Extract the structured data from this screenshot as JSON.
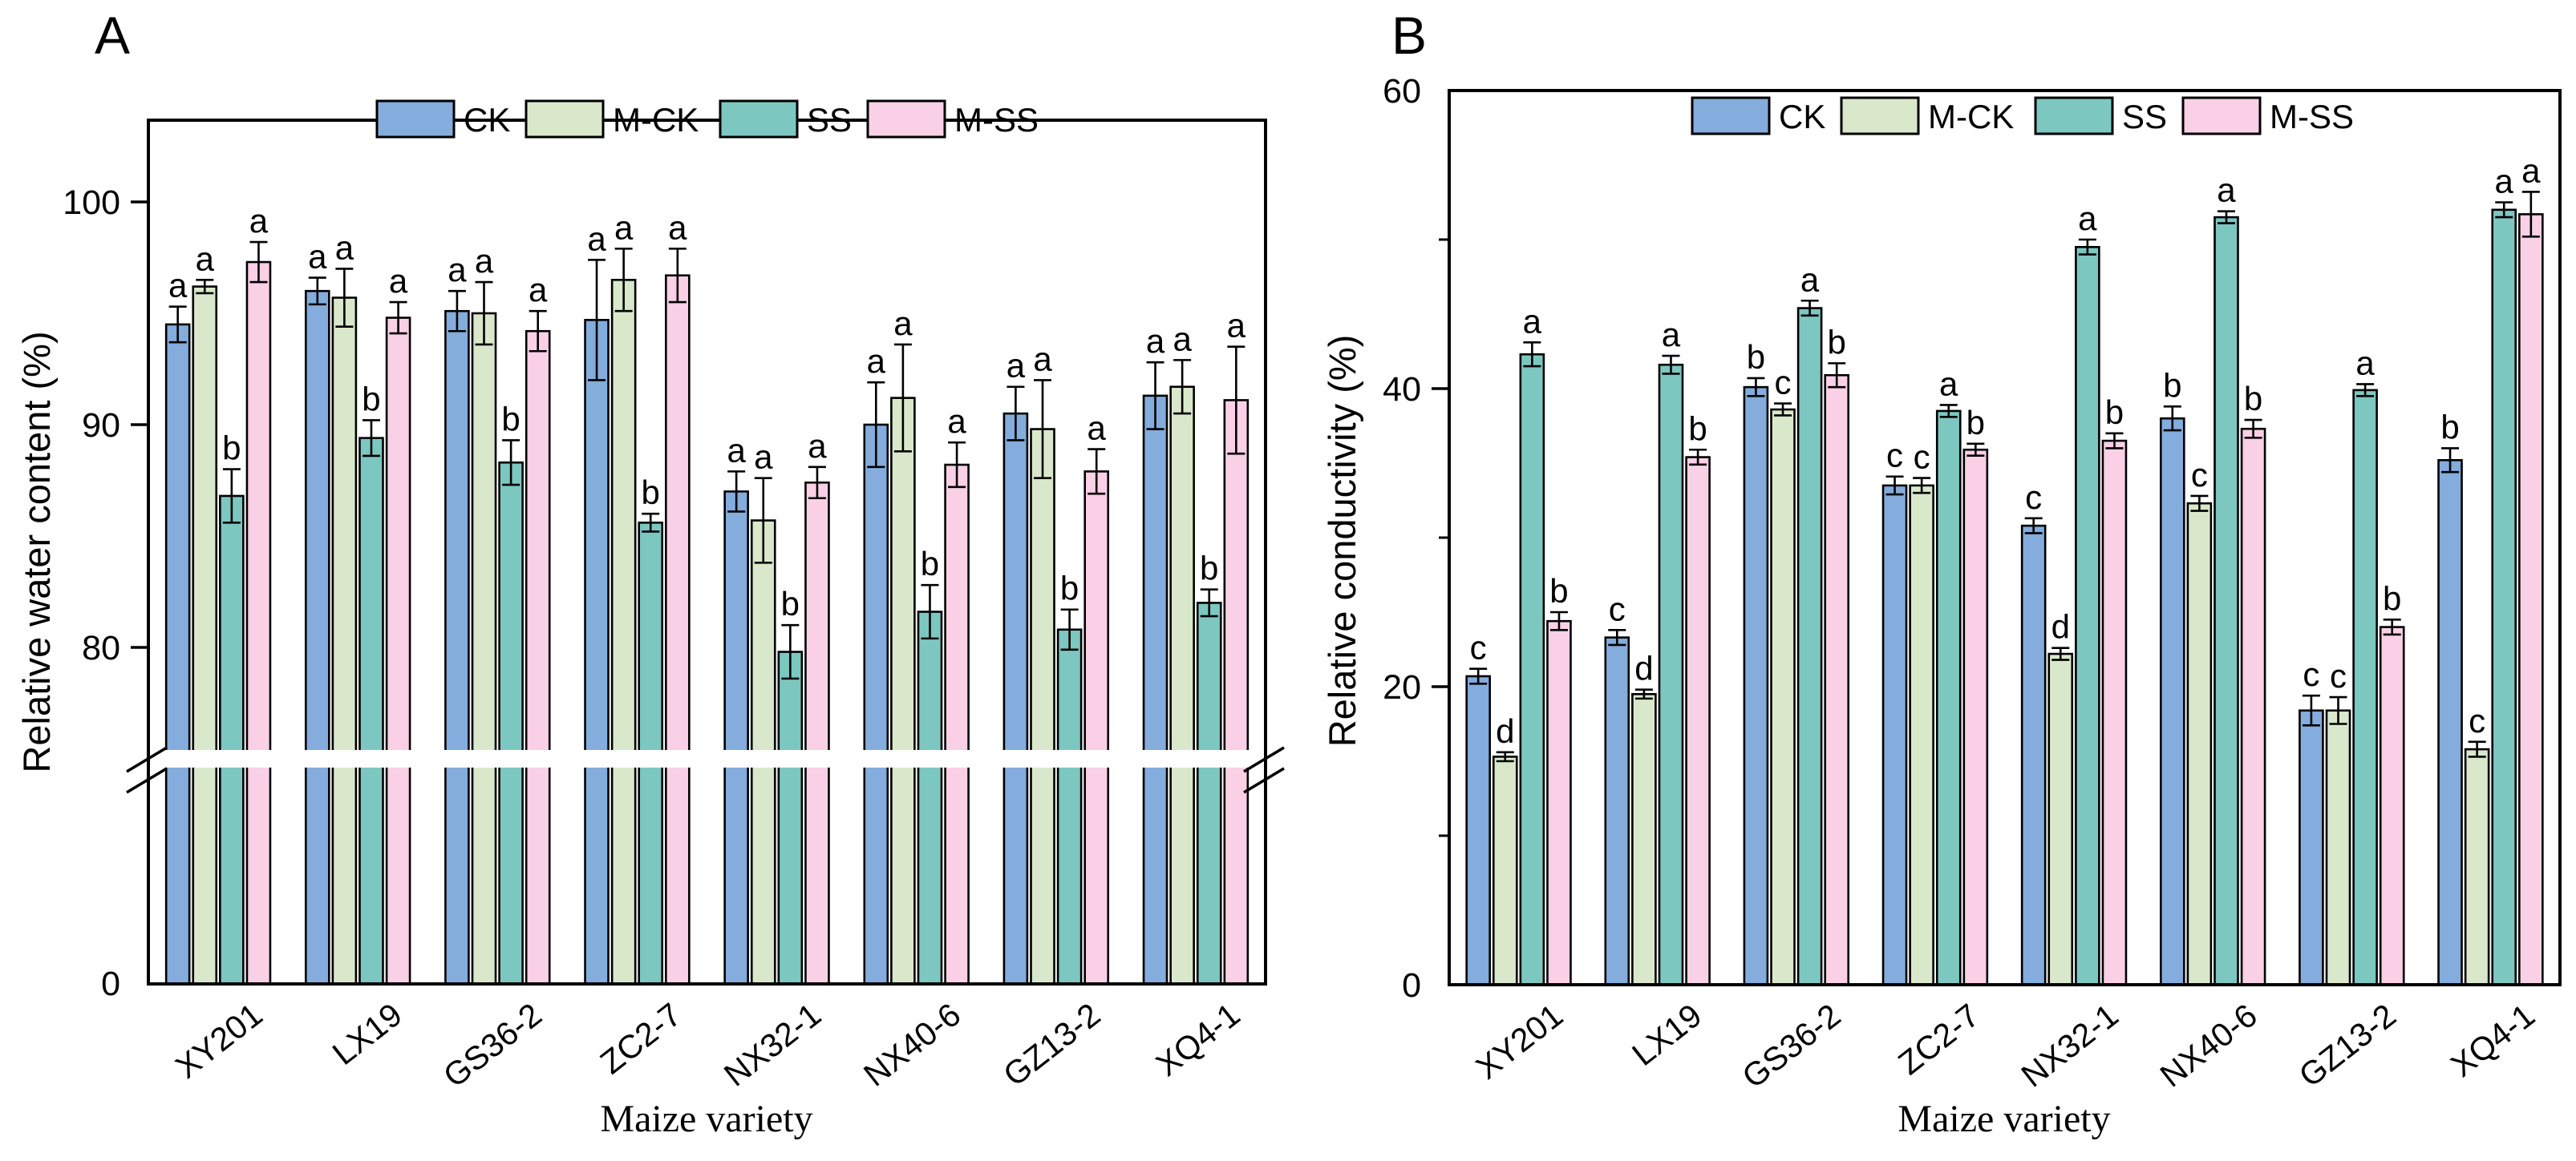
{
  "panel_a": {
    "label": "A",
    "ylabel": "Relative water content (%)",
    "xlabel": "Maize variety"
  },
  "panel_b": {
    "label": "B",
    "ylabel": "Relative conductivity (%)",
    "xlabel": "Maize variety"
  },
  "legend": {
    "items": [
      "CK",
      "M-CK",
      "SS",
      "M-SS"
    ]
  },
  "colors": {
    "CK": "#84ACDC",
    "M-CK": "#D9E8CA",
    "SS": "#7DC7C1",
    "M-SS": "#F9D0E6",
    "outline": "#000000",
    "background": "#ffffff"
  },
  "chart_data": [
    {
      "type": "bar",
      "panel": "A",
      "ylabel": "Relative water content (%)",
      "xlabel": "Maize variety",
      "legend_position": "top-inside",
      "grid": false,
      "y_axis": {
        "labeled_ticks": [
          100,
          90,
          80,
          0
        ],
        "broken_axis_gap": [
          0,
          75
        ],
        "unit": "%"
      },
      "categories": [
        "XY201",
        "LX19",
        "GS36-2",
        "ZC2-7",
        "NX32-1",
        "NX40-6",
        "GZ13-2",
        "XQ4-1"
      ],
      "series": [
        {
          "name": "CK",
          "color": "#84ACDC",
          "values": [
            94.5,
            96.0,
            95.1,
            94.7,
            87.0,
            90.0,
            90.5,
            91.3
          ],
          "errors": [
            0.8,
            0.6,
            0.9,
            2.7,
            0.9,
            1.9,
            1.2,
            1.5
          ],
          "letters": [
            "a",
            "a",
            "a",
            "a",
            "a",
            "a",
            "a",
            "a"
          ]
        },
        {
          "name": "M-CK",
          "color": "#D9E8CA",
          "values": [
            96.2,
            95.7,
            95.0,
            96.5,
            85.7,
            91.2,
            89.8,
            91.7
          ],
          "errors": [
            0.3,
            1.3,
            1.4,
            1.4,
            1.9,
            2.4,
            2.2,
            1.2
          ],
          "letters": [
            "a",
            "a",
            "a",
            "a",
            "a",
            "a",
            "a",
            "a"
          ]
        },
        {
          "name": "SS",
          "color": "#7DC7C1",
          "values": [
            86.8,
            89.4,
            88.3,
            85.6,
            79.8,
            81.6,
            80.8,
            82.0
          ],
          "errors": [
            1.2,
            0.8,
            1.0,
            0.4,
            1.2,
            1.2,
            0.9,
            0.6
          ],
          "letters": [
            "b",
            "b",
            "b",
            "b",
            "b",
            "b",
            "b",
            "b"
          ]
        },
        {
          "name": "M-SS",
          "color": "#F9D0E6",
          "values": [
            97.3,
            94.8,
            94.2,
            96.7,
            87.4,
            88.2,
            87.9,
            91.1
          ],
          "errors": [
            0.9,
            0.7,
            0.9,
            1.2,
            0.7,
            1.0,
            1.0,
            2.4
          ],
          "letters": [
            "a",
            "a",
            "a",
            "a",
            "a",
            "a",
            "a",
            "a"
          ]
        }
      ]
    },
    {
      "type": "bar",
      "panel": "B",
      "ylabel": "Relative conductivity (%)",
      "xlabel": "Maize variety",
      "legend_position": "top-inside",
      "grid": false,
      "ylim": [
        0,
        60
      ],
      "y_axis": {
        "labeled_ticks": [
          0,
          20,
          40,
          60
        ],
        "minor_ticks": [
          10,
          30,
          50
        ],
        "unit": "%"
      },
      "categories": [
        "XY201",
        "LX19",
        "GS36-2",
        "ZC2-7",
        "NX32-1",
        "NX40-6",
        "GZ13-2",
        "XQ4-1"
      ],
      "series": [
        {
          "name": "CK",
          "color": "#84ACDC",
          "values": [
            20.7,
            23.3,
            40.1,
            33.5,
            30.8,
            38.0,
            18.4,
            35.2
          ],
          "errors": [
            0.5,
            0.5,
            0.6,
            0.6,
            0.5,
            0.8,
            1.0,
            0.8
          ],
          "letters": [
            "c",
            "c",
            "b",
            "c",
            "c",
            "b",
            "c",
            "b"
          ]
        },
        {
          "name": "M-CK",
          "color": "#D9E8CA",
          "values": [
            15.3,
            19.5,
            38.6,
            33.5,
            22.2,
            32.3,
            18.4,
            15.8
          ],
          "errors": [
            0.3,
            0.3,
            0.4,
            0.5,
            0.4,
            0.5,
            0.9,
            0.5
          ],
          "letters": [
            "d",
            "d",
            "c",
            "c",
            "d",
            "c",
            "c",
            "c"
          ]
        },
        {
          "name": "SS",
          "color": "#7DC7C1",
          "values": [
            42.3,
            41.6,
            45.4,
            38.5,
            49.5,
            51.5,
            39.9,
            52.0
          ],
          "errors": [
            0.8,
            0.6,
            0.5,
            0.4,
            0.5,
            0.4,
            0.4,
            0.5
          ],
          "letters": [
            "a",
            "a",
            "a",
            "a",
            "a",
            "a",
            "a",
            "a"
          ]
        },
        {
          "name": "M-SS",
          "color": "#F9D0E6",
          "values": [
            24.4,
            35.4,
            40.9,
            35.9,
            36.5,
            37.3,
            24.0,
            51.7
          ],
          "errors": [
            0.6,
            0.5,
            0.8,
            0.4,
            0.5,
            0.6,
            0.5,
            1.5
          ],
          "letters": [
            "b",
            "b",
            "b",
            "b",
            "b",
            "b",
            "b",
            "a"
          ]
        }
      ]
    }
  ]
}
